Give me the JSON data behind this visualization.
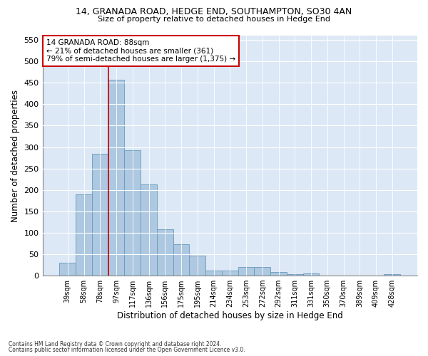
{
  "title1": "14, GRANADA ROAD, HEDGE END, SOUTHAMPTON, SO30 4AN",
  "title2": "Size of property relative to detached houses in Hedge End",
  "xlabel": "Distribution of detached houses by size in Hedge End",
  "ylabel": "Number of detached properties",
  "categories": [
    "39sqm",
    "58sqm",
    "78sqm",
    "97sqm",
    "117sqm",
    "136sqm",
    "156sqm",
    "175sqm",
    "195sqm",
    "214sqm",
    "234sqm",
    "253sqm",
    "272sqm",
    "292sqm",
    "311sqm",
    "331sqm",
    "350sqm",
    "370sqm",
    "389sqm",
    "409sqm",
    "428sqm"
  ],
  "values": [
    30,
    190,
    285,
    457,
    292,
    213,
    108,
    74,
    47,
    12,
    11,
    20,
    20,
    8,
    3,
    5,
    0,
    0,
    0,
    0,
    4
  ],
  "bar_color": "#adc8e0",
  "bar_edge_color": "#6699bb",
  "vline_color": "#cc0000",
  "annotation_text": "14 GRANADA ROAD: 88sqm\n← 21% of detached houses are smaller (361)\n79% of semi-detached houses are larger (1,375) →",
  "annotation_box_color": "#ffffff",
  "annotation_box_edge_color": "#cc0000",
  "ylim": [
    0,
    560
  ],
  "yticks": [
    0,
    50,
    100,
    150,
    200,
    250,
    300,
    350,
    400,
    450,
    500,
    550
  ],
  "background_color": "#dce8f5",
  "footer1": "Contains HM Land Registry data © Crown copyright and database right 2024.",
  "footer2": "Contains public sector information licensed under the Open Government Licence v3.0."
}
